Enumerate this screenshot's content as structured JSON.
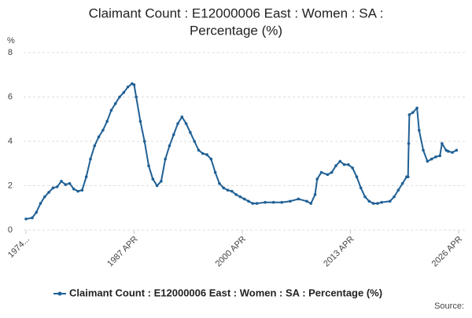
{
  "chart_data": {
    "type": "line",
    "title": [
      "Claimant Count : E12000006 East : Women : SA :",
      "Percentage (%)"
    ],
    "y_axis_label": "%",
    "source": "Source:",
    "xlim": [
      1974.25,
      2026.25
    ],
    "xticks": [
      {
        "value": 1974.25,
        "label": "1974..."
      },
      {
        "value": 1987.25,
        "label": "1987 APR"
      },
      {
        "value": 2000.25,
        "label": "2000 APR"
      },
      {
        "value": 2013.25,
        "label": "2013 APR"
      },
      {
        "value": 2026.25,
        "label": "2026 APR"
      }
    ],
    "ylim": [
      0,
      8
    ],
    "yticks": [
      0,
      2,
      4,
      6,
      8
    ],
    "grid": true,
    "legend": "bottom",
    "x": [
      1974.25,
      1975,
      1975.5,
      1976,
      1976.5,
      1977,
      1977.5,
      1978,
      1978.5,
      1979,
      1979.5,
      1980,
      1980.5,
      1981,
      1981.5,
      1982,
      1982.5,
      1983,
      1983.5,
      1984,
      1984.5,
      1985,
      1985.5,
      1986,
      1986.5,
      1987,
      1987.25,
      1987.5,
      1988,
      1988.5,
      1989,
      1989.5,
      1990,
      1990.5,
      1991,
      1991.5,
      1992,
      1992.5,
      1993,
      1993.5,
      1994,
      1994.5,
      1995,
      1995.5,
      1996,
      1996.5,
      1997,
      1997.5,
      1998,
      1998.5,
      1999,
      1999.5,
      2000,
      2000.5,
      2001,
      2001.5,
      2002,
      2003,
      2004,
      2005,
      2006,
      2007,
      2008,
      2008.5,
      2009,
      2009.25,
      2009.75,
      2010.5,
      2011,
      2011.5,
      2012,
      2012.5,
      2013,
      2013.5,
      2014,
      2014.5,
      2015,
      2015.5,
      2016,
      2016.5,
      2017,
      2018,
      2018.5,
      2019,
      2019.5,
      2020,
      2020.17,
      2020.25,
      2020.33,
      2020.75,
      2021.25,
      2021.5,
      2022,
      2022.5,
      2023,
      2023.5,
      2024,
      2024.25,
      2024.75,
      2025,
      2025.5,
      2026
    ],
    "series": [
      {
        "name": "Claimant Count : E12000006 East : Women : SA : Percentage (%)",
        "color": "#206095",
        "values": [
          0.5,
          0.55,
          0.8,
          1.2,
          1.5,
          1.7,
          1.9,
          1.95,
          2.2,
          2.05,
          2.1,
          1.85,
          1.75,
          1.8,
          2.4,
          3.2,
          3.8,
          4.2,
          4.5,
          4.9,
          5.4,
          5.7,
          6.0,
          6.2,
          6.45,
          6.6,
          6.55,
          6.0,
          4.9,
          4.0,
          2.9,
          2.3,
          2.0,
          2.2,
          3.2,
          3.8,
          4.3,
          4.8,
          5.1,
          4.8,
          4.4,
          4.0,
          3.6,
          3.45,
          3.4,
          3.2,
          2.6,
          2.1,
          1.9,
          1.8,
          1.75,
          1.6,
          1.5,
          1.4,
          1.3,
          1.2,
          1.2,
          1.25,
          1.25,
          1.25,
          1.3,
          1.4,
          1.3,
          1.2,
          1.6,
          2.3,
          2.6,
          2.5,
          2.6,
          2.9,
          3.1,
          2.95,
          2.95,
          2.8,
          2.4,
          1.9,
          1.5,
          1.3,
          1.2,
          1.2,
          1.25,
          1.3,
          1.5,
          1.8,
          2.1,
          2.4,
          2.4,
          3.9,
          5.2,
          5.3,
          5.5,
          4.5,
          3.6,
          3.1,
          3.2,
          3.3,
          3.35,
          3.9,
          3.6,
          3.55,
          3.5,
          3.6
        ]
      }
    ]
  }
}
